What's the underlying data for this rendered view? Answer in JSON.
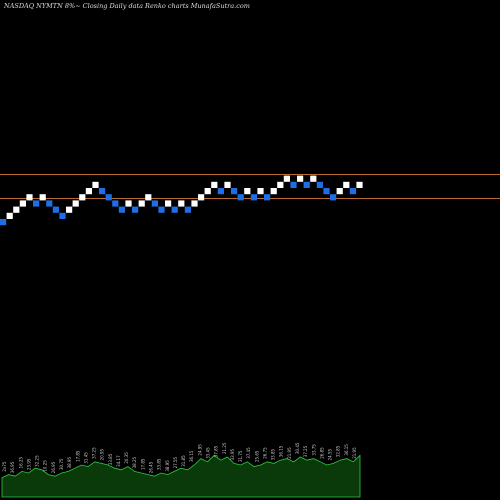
{
  "chart_data": {
    "type": "renko",
    "title": "NASDAQ NYMTN  8%~  Closing Daily data  Renko  charts MunafaSutra.com",
    "colors": {
      "background": "#000000",
      "up_brick": "#ffffff",
      "down_brick": "#1e6ee6",
      "reference_line": "#b8692e",
      "volume_fill": "#0a3a0a",
      "volume_stroke": "#2ecc40"
    },
    "reference_lines": [
      "upper",
      "lower"
    ],
    "bricks": [
      {
        "dir": "down",
        "level": 0
      },
      {
        "dir": "up",
        "level": 1
      },
      {
        "dir": "up",
        "level": 2
      },
      {
        "dir": "up",
        "level": 3
      },
      {
        "dir": "up",
        "level": 4
      },
      {
        "dir": "down",
        "level": 3
      },
      {
        "dir": "up",
        "level": 4
      },
      {
        "dir": "down",
        "level": 3
      },
      {
        "dir": "down",
        "level": 2
      },
      {
        "dir": "down",
        "level": 1
      },
      {
        "dir": "up",
        "level": 2
      },
      {
        "dir": "up",
        "level": 3
      },
      {
        "dir": "up",
        "level": 4
      },
      {
        "dir": "up",
        "level": 5
      },
      {
        "dir": "up",
        "level": 6
      },
      {
        "dir": "down",
        "level": 5
      },
      {
        "dir": "down",
        "level": 4
      },
      {
        "dir": "down",
        "level": 3
      },
      {
        "dir": "down",
        "level": 2
      },
      {
        "dir": "up",
        "level": 3
      },
      {
        "dir": "down",
        "level": 2
      },
      {
        "dir": "up",
        "level": 3
      },
      {
        "dir": "up",
        "level": 4
      },
      {
        "dir": "down",
        "level": 3
      },
      {
        "dir": "down",
        "level": 2
      },
      {
        "dir": "up",
        "level": 3
      },
      {
        "dir": "down",
        "level": 2
      },
      {
        "dir": "up",
        "level": 3
      },
      {
        "dir": "down",
        "level": 2
      },
      {
        "dir": "up",
        "level": 3
      },
      {
        "dir": "up",
        "level": 4
      },
      {
        "dir": "up",
        "level": 5
      },
      {
        "dir": "up",
        "level": 6
      },
      {
        "dir": "down",
        "level": 5
      },
      {
        "dir": "up",
        "level": 6
      },
      {
        "dir": "down",
        "level": 5
      },
      {
        "dir": "down",
        "level": 4
      },
      {
        "dir": "up",
        "level": 5
      },
      {
        "dir": "down",
        "level": 4
      },
      {
        "dir": "up",
        "level": 5
      },
      {
        "dir": "down",
        "level": 4
      },
      {
        "dir": "up",
        "level": 5
      },
      {
        "dir": "up",
        "level": 6
      },
      {
        "dir": "up",
        "level": 7
      },
      {
        "dir": "down",
        "level": 6
      },
      {
        "dir": "up",
        "level": 7
      },
      {
        "dir": "down",
        "level": 6
      },
      {
        "dir": "up",
        "level": 7
      },
      {
        "dir": "down",
        "level": 6
      },
      {
        "dir": "down",
        "level": 5
      },
      {
        "dir": "down",
        "level": 4
      },
      {
        "dir": "up",
        "level": 5
      },
      {
        "dir": "up",
        "level": 6
      },
      {
        "dir": "down",
        "level": 5
      },
      {
        "dir": "up",
        "level": 6
      }
    ],
    "volume_profile": [
      12,
      14,
      13,
      16,
      15,
      18,
      17,
      14,
      13,
      15,
      16,
      18,
      20,
      19,
      22,
      21,
      20,
      18,
      17,
      19,
      16,
      15,
      14,
      13,
      15,
      14,
      16,
      18,
      17,
      20,
      24,
      22,
      26,
      23,
      25,
      21,
      20,
      22,
      19,
      20,
      22,
      21,
      23,
      24,
      22,
      25,
      23,
      24,
      22,
      20,
      21,
      23,
      24,
      22,
      26
    ],
    "volume_labels": [
      "2x75",
      "36.95",
      "16.25",
      "23.95",
      "32.25",
      "10.25",
      "26.95",
      "30.75",
      "38.95",
      "17.85",
      "31.45",
      "37.25",
      "20.95",
      "33.85",
      "34.17",
      "20.35",
      "38.25",
      "17.85",
      "26.45",
      "33.85",
      "38.95",
      "27.55",
      "31.85",
      "36.15",
      "24.95",
      "33.45",
      "37.85",
      "21.25",
      "33.95",
      "31.75",
      "37.45",
      "25.65",
      "26.75",
      "33.85",
      "36.15",
      "21.95",
      "30.45",
      "37.25",
      "33.75",
      "26.85",
      "24.55",
      "32.85",
      "36.15",
      "21.95"
    ]
  }
}
